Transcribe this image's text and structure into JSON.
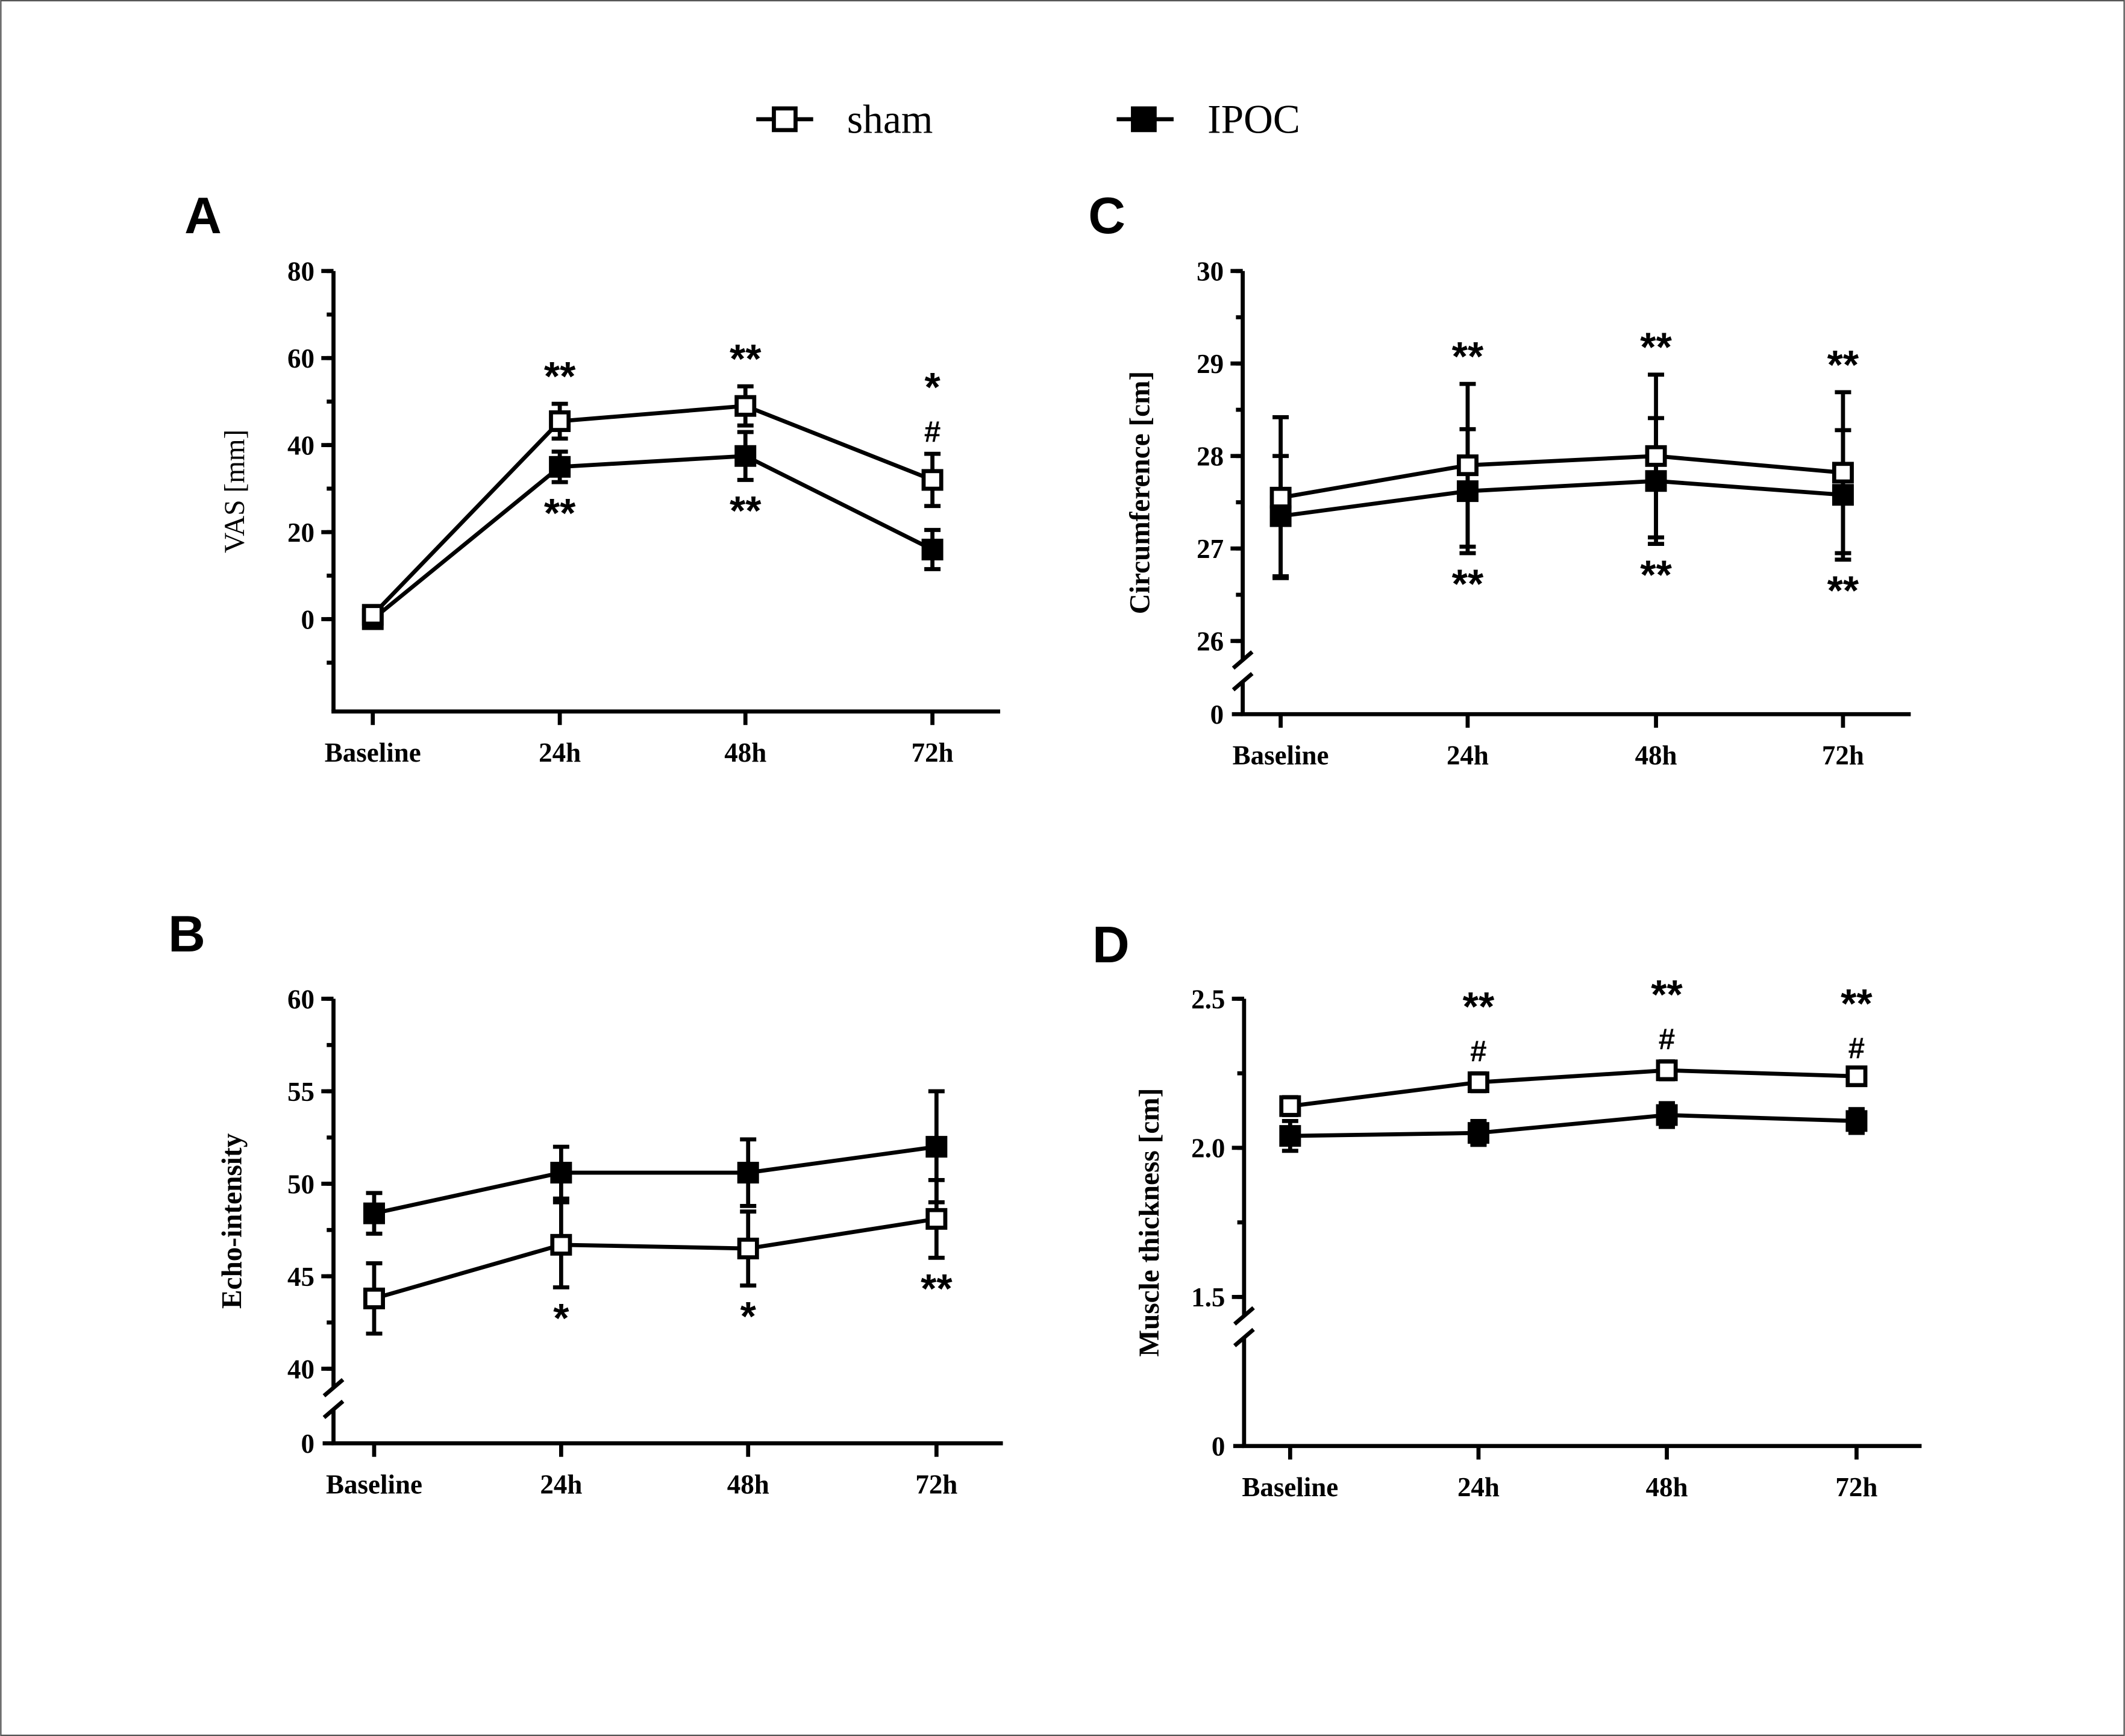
{
  "legend": {
    "series": [
      {
        "name": "sham",
        "marker": "open-square"
      },
      {
        "name": "IPOC",
        "marker": "filled-square"
      }
    ]
  },
  "chart_data": [
    {
      "panel": "A",
      "type": "line",
      "ylabel": "VAS [mm]",
      "categories": [
        "Baseline",
        "24h",
        "48h",
        "72h"
      ],
      "ylim": [
        -10,
        80
      ],
      "yticks": [
        0,
        20,
        40,
        60,
        80
      ],
      "ytick_labels": [
        "0",
        "20",
        "40",
        "60",
        "80"
      ],
      "minor_step": 10,
      "axis_break": false,
      "series": [
        {
          "name": "sham",
          "values": [
            1,
            45.5,
            49,
            32
          ],
          "errors": [
            1.5,
            4,
            4.5,
            6
          ]
        },
        {
          "name": "IPOC",
          "values": [
            0,
            35,
            37.5,
            16
          ],
          "errors": [
            1,
            3.5,
            5.5,
            4.5
          ]
        }
      ],
      "annotations": [
        {
          "category": "24h",
          "series": "sham",
          "position": "above",
          "text": [
            "**"
          ]
        },
        {
          "category": "48h",
          "series": "sham",
          "position": "above",
          "text": [
            "**"
          ]
        },
        {
          "category": "72h",
          "series": "sham",
          "position": "above",
          "text": [
            "*",
            "#"
          ]
        },
        {
          "category": "24h",
          "series": "IPOC",
          "position": "below",
          "text": [
            "**"
          ]
        },
        {
          "category": "48h",
          "series": "IPOC",
          "position": "below",
          "text": [
            "**"
          ]
        }
      ]
    },
    {
      "panel": "B",
      "type": "line",
      "ylabel": "Echo-intensity",
      "categories": [
        "Baseline",
        "24h",
        "48h",
        "72h"
      ],
      "ylim": [
        40,
        60
      ],
      "yticks": [
        40,
        45,
        50,
        55,
        60
      ],
      "ytick_labels": [
        "40",
        "45",
        "50",
        "55",
        "60"
      ],
      "minor_step": 2.5,
      "axis_break": true,
      "break_zero_label": "0",
      "series": [
        {
          "name": "sham",
          "values": [
            43.8,
            46.7,
            46.5,
            48.1
          ],
          "errors": [
            1.9,
            2.3,
            2.0,
            2.1
          ]
        },
        {
          "name": "IPOC",
          "values": [
            48.4,
            50.6,
            50.6,
            52.0
          ],
          "errors": [
            1.1,
            1.4,
            1.8,
            3.0
          ]
        }
      ],
      "annotations": [
        {
          "category": "24h",
          "series": "sham",
          "position": "below",
          "text": [
            "*"
          ]
        },
        {
          "category": "48h",
          "series": "sham",
          "position": "below",
          "text": [
            "*"
          ]
        },
        {
          "category": "72h",
          "series": "sham",
          "position": "below",
          "text": [
            "**"
          ]
        }
      ]
    },
    {
      "panel": "C",
      "type": "line",
      "ylabel": "Circumference [cm]",
      "categories": [
        "Baseline",
        "24h",
        "48h",
        "72h"
      ],
      "ylim": [
        26,
        30
      ],
      "yticks": [
        26,
        27,
        28,
        29,
        30
      ],
      "ytick_labels": [
        "26",
        "27",
        "28",
        "29",
        "30"
      ],
      "minor_step": 0.5,
      "axis_break": true,
      "break_zero_label": "0",
      "series": [
        {
          "name": "sham",
          "values": [
            27.55,
            27.9,
            28.0,
            27.82
          ],
          "errors": [
            0.87,
            0.88,
            0.88,
            0.87
          ]
        },
        {
          "name": "IPOC",
          "values": [
            27.35,
            27.62,
            27.73,
            27.58
          ],
          "errors": [
            0.65,
            0.67,
            0.68,
            0.7
          ]
        }
      ],
      "annotations": [
        {
          "category": "24h",
          "series": "sham",
          "position": "above",
          "text": [
            "**"
          ]
        },
        {
          "category": "48h",
          "series": "sham",
          "position": "above",
          "text": [
            "**"
          ]
        },
        {
          "category": "72h",
          "series": "sham",
          "position": "above",
          "text": [
            "**"
          ]
        },
        {
          "category": "24h",
          "series": "IPOC",
          "position": "below",
          "text": [
            "**"
          ]
        },
        {
          "category": "48h",
          "series": "IPOC",
          "position": "below",
          "text": [
            "**"
          ]
        },
        {
          "category": "72h",
          "series": "IPOC",
          "position": "below",
          "text": [
            "**"
          ]
        }
      ]
    },
    {
      "panel": "D",
      "type": "line",
      "ylabel": "Muscle thickness [cm]",
      "categories": [
        "Baseline",
        "24h",
        "48h",
        "72h"
      ],
      "ylim": [
        1.5,
        2.5
      ],
      "yticks": [
        1.5,
        2.0,
        2.5
      ],
      "ytick_labels": [
        "1.5",
        "2.0",
        "2.5"
      ],
      "minor_step": 0.25,
      "axis_break": true,
      "break_zero_label": "0",
      "series": [
        {
          "name": "sham",
          "values": [
            2.14,
            2.22,
            2.26,
            2.24
          ],
          "errors": [
            0.03,
            0.03,
            0.03,
            0.02
          ]
        },
        {
          "name": "IPOC",
          "values": [
            2.04,
            2.05,
            2.11,
            2.09
          ],
          "errors": [
            0.05,
            0.04,
            0.04,
            0.04
          ]
        }
      ],
      "annotations": [
        {
          "category": "24h",
          "series": "sham",
          "position": "above",
          "text": [
            "**",
            "#"
          ]
        },
        {
          "category": "48h",
          "series": "sham",
          "position": "above",
          "text": [
            "**",
            "#"
          ]
        },
        {
          "category": "72h",
          "series": "sham",
          "position": "above",
          "text": [
            "**",
            "#"
          ]
        }
      ]
    }
  ]
}
